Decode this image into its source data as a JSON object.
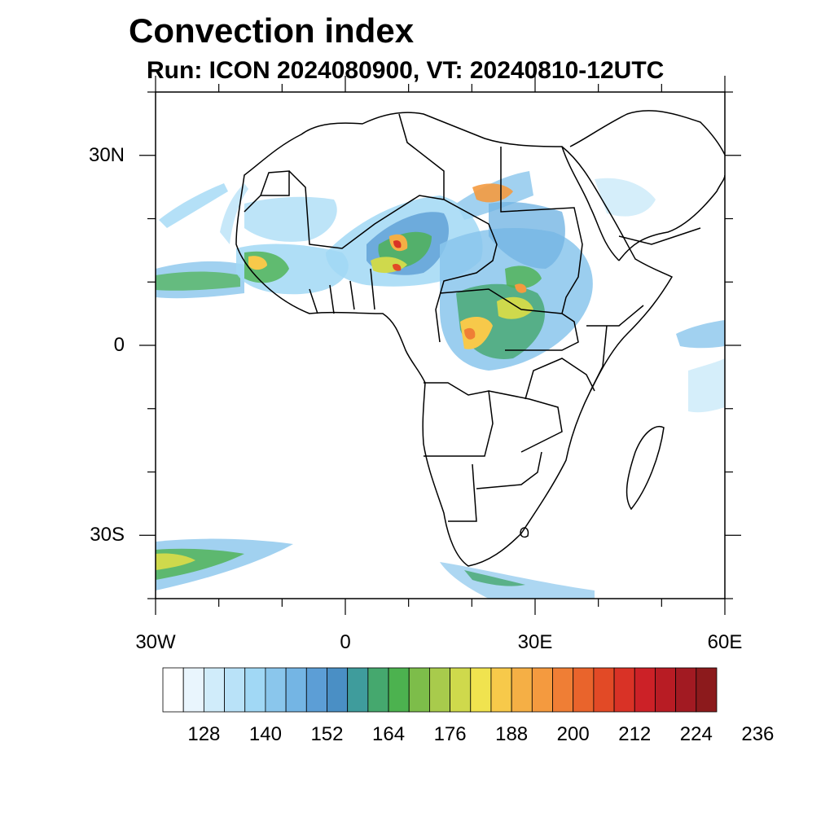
{
  "title": "Convection index",
  "subtitle": "Run: ICON 2024080900,  VT: 20240810-12UTC",
  "map": {
    "lon_range": [
      -30,
      60
    ],
    "lat_range": [
      -40,
      40
    ],
    "x_ticks": [
      {
        "lon": -30,
        "label": "30W"
      },
      {
        "lon": 0,
        "label": "0"
      },
      {
        "lon": 30,
        "label": "30E"
      },
      {
        "lon": 60,
        "label": "60E"
      }
    ],
    "y_ticks": [
      {
        "lat": 30,
        "label": "30N"
      },
      {
        "lat": 0,
        "label": "0"
      },
      {
        "lat": -30,
        "label": "30S"
      }
    ]
  },
  "colorbar": {
    "colors": [
      "#ffffff",
      "#e9f5fd",
      "#d0ecfa",
      "#b9e2f8",
      "#a1d8f5",
      "#8ac6ec",
      "#74b5e4",
      "#5c9ed6",
      "#4a8fc5",
      "#3f9c9c",
      "#45a86e",
      "#4cb24f",
      "#7dbd4a",
      "#a8cb4c",
      "#cfd94c",
      "#f0e34f",
      "#f7c94a",
      "#f5af45",
      "#f49a3f",
      "#ef7e35",
      "#e9642c",
      "#e24a26",
      "#d93226",
      "#cc2127",
      "#b81c24",
      "#a21a22",
      "#8c1a1c"
    ],
    "labels": [
      "128",
      "140",
      "152",
      "164",
      "176",
      "188",
      "200",
      "212",
      "224",
      "236"
    ]
  }
}
